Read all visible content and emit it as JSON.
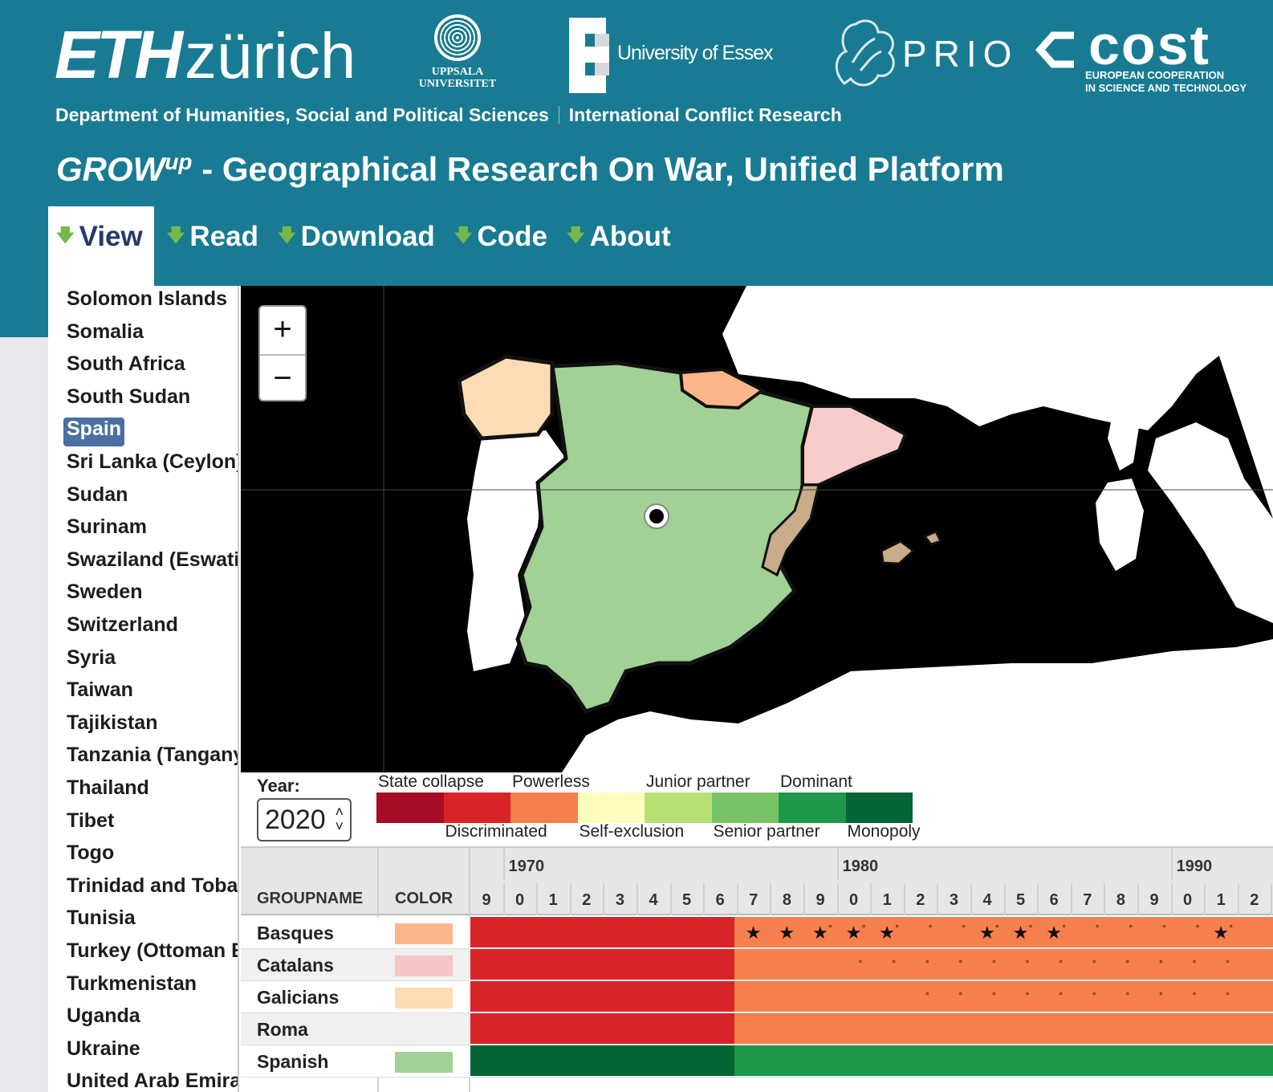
{
  "header": {
    "logos": {
      "eth": {
        "bold": "ETH",
        "light": "zürich"
      },
      "uppsala": {
        "line1": "UPPSALA",
        "line2": "UNIVERSITET"
      },
      "essex": "University of Essex",
      "prio": "PRIO",
      "cost": {
        "word": "cost",
        "sub1": "EUROPEAN COOPERATION",
        "sub2": "IN SCIENCE AND TECHNOLOGY"
      }
    },
    "department": "Department of Humanities, Social and Political Sciences",
    "group": "International Conflict Research",
    "title": {
      "grow": "GROW",
      "sup": "up",
      "rest": " - Geographical Research On War, Unified Platform"
    },
    "colors": {
      "header_bg": "#187b93",
      "active_tab_text": "#253a6b",
      "nav_arrow": "#74b84a"
    }
  },
  "nav": {
    "items": [
      {
        "label": "View",
        "active": true
      },
      {
        "label": "Read",
        "active": false
      },
      {
        "label": "Download",
        "active": false
      },
      {
        "label": "Code",
        "active": false
      },
      {
        "label": "About",
        "active": false
      }
    ],
    "arrow_icon": "down-arrow-icon"
  },
  "sidebar": {
    "countries": [
      "Solomon Islands",
      "Somalia",
      "South Africa",
      "South Sudan",
      "Spain",
      "Sri Lanka (Ceylon)",
      "Sudan",
      "Surinam",
      "Swaziland (Eswatini)",
      "Sweden",
      "Switzerland",
      "Syria",
      "Taiwan",
      "Tajikistan",
      "Tanzania (Tanganyika)",
      "Thailand",
      "Tibet",
      "Togo",
      "Trinidad and Tobago",
      "Tunisia",
      "Turkey (Ottoman Empire)",
      "Turkmenistan",
      "Uganda",
      "Ukraine",
      "United Arab Emirates"
    ],
    "selected": "Spain"
  },
  "map": {
    "zoom_in": "+",
    "zoom_out": "−",
    "regions": [
      {
        "group": "Spanish",
        "color": "#a1d194"
      },
      {
        "group": "Galicians",
        "color": "#fddcb4"
      },
      {
        "group": "Basques",
        "color": "#fdb68a"
      },
      {
        "group": "Catalans",
        "color": "#f9cccc"
      }
    ],
    "capital_icon": "capital-marker-icon"
  },
  "controls": {
    "year_label": "Year:",
    "year_value": "2020",
    "legend": [
      {
        "label": "State collapse",
        "color": "#a50d26"
      },
      {
        "label": "Discriminated",
        "color": "#d82428"
      },
      {
        "label": "Powerless",
        "color": "#f67f4e"
      },
      {
        "label": "Self-exclusion",
        "color": "#fefdbe"
      },
      {
        "label": "Junior partner",
        "color": "#b7e075"
      },
      {
        "label": "Senior partner",
        "color": "#78c367"
      },
      {
        "label": "Dominant",
        "color": "#1e9849"
      },
      {
        "label": "Monopoly",
        "color": "#056534"
      }
    ]
  },
  "table": {
    "col_groupname": "GROUPNAME",
    "col_color": "COLOR",
    "decades": [
      "1970",
      "1980",
      "1990"
    ],
    "years": [
      "9",
      "0",
      "1",
      "2",
      "3",
      "4",
      "5",
      "6",
      "7",
      "8",
      "9",
      "0",
      "1",
      "2",
      "3",
      "4",
      "5",
      "6",
      "7",
      "8",
      "9",
      "0",
      "1",
      "2"
    ],
    "rows": [
      {
        "name": "Basques",
        "swatch": "#fdb68a",
        "early": "#d82428",
        "late": "#f67f4e",
        "stars": [
          8,
          9,
          10,
          11,
          12,
          15,
          16,
          17,
          22
        ],
        "dots": [
          10,
          11,
          12,
          13,
          14,
          15,
          16,
          17,
          18,
          19,
          20,
          21,
          22
        ]
      },
      {
        "name": "Catalans",
        "swatch": "#f4c6c8",
        "early": "#d82428",
        "late": "#f67f4e",
        "stars": [],
        "dots": [
          11,
          12,
          13,
          14,
          15,
          16,
          17,
          18,
          19,
          20,
          21,
          22
        ]
      },
      {
        "name": "Galicians",
        "swatch": "#fddcb4",
        "early": "#d82428",
        "late": "#f67f4e",
        "stars": [],
        "dots": [
          13,
          14,
          15,
          16,
          17,
          18,
          19,
          20,
          21,
          22
        ]
      },
      {
        "name": "Roma",
        "swatch": "",
        "early": "#d82428",
        "late": "#f67f4e",
        "stars": [],
        "dots": []
      },
      {
        "name": "Spanish",
        "swatch": "#a1d194",
        "early": "#056534",
        "late": "#1e9849",
        "stars": [],
        "dots": []
      }
    ],
    "change_index": 8,
    "star_icon": "star-icon",
    "dot_icon": "small-circle-icon"
  }
}
